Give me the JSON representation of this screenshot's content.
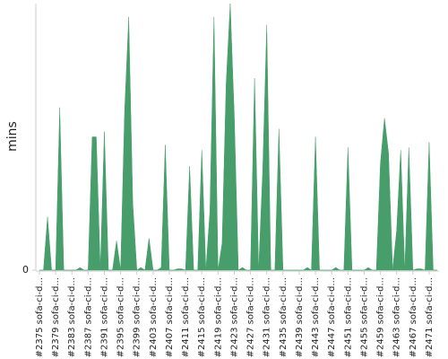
{
  "chart_data": {
    "type": "area",
    "y_label": "mins",
    "color": "#489e6b",
    "ylim": [
      0,
      100
    ],
    "yticks": [
      0
    ],
    "categories": [
      "#2375 sofa-ci-d...",
      null,
      null,
      null,
      "#2379 sofa-ci-d...",
      null,
      null,
      null,
      "#2383 sofa-ci-d...",
      null,
      null,
      null,
      "#2387 sofa-ci-d...",
      null,
      null,
      null,
      "#2391 sofa-ci-d...",
      null,
      null,
      null,
      "#2395 sofa-ci-d...",
      null,
      null,
      null,
      "#2399 sofa-ci-d...",
      null,
      null,
      null,
      "#2403 sofa-ci-d...",
      null,
      null,
      null,
      "#2407 sofa-ci-d...",
      null,
      null,
      null,
      "#2411 sofa-ci-d...",
      null,
      null,
      null,
      "#2415 sofa-ci-d...",
      null,
      null,
      null,
      "#2419 sofa-ci-d...",
      null,
      null,
      null,
      "#2423 sofa-ci-d...",
      null,
      null,
      null,
      "#2427 sofa-ci-d...",
      null,
      null,
      null,
      "#2431 sofa-ci-d...",
      null,
      null,
      null,
      "#2435 sofa-ci-d...",
      null,
      null,
      null,
      "#2439 sofa-ci-d...",
      null,
      null,
      null,
      "#2443 sofa-ci-d...",
      null,
      null,
      null,
      "#2447 sofa-ci-d...",
      null,
      null,
      null,
      "#2451 sofa-ci-d...",
      null,
      null,
      null,
      "#2455 sofa-ci-d...",
      null,
      null,
      null,
      "#2459 sofa-ci-d...",
      null,
      null,
      null,
      "#2463 sofa-ci-d...",
      null,
      null,
      null,
      "#2467 sofa-ci-d...",
      null,
      null,
      null,
      "#2471 sofa-ci-d...",
      null,
      null
    ],
    "values": [
      0,
      0,
      20,
      0,
      0,
      61,
      0,
      0,
      0,
      0,
      1,
      0,
      0,
      50,
      50,
      0,
      52,
      0,
      0,
      11,
      0,
      60,
      95,
      25,
      0,
      1,
      0,
      12,
      0,
      0,
      1,
      47,
      0,
      0,
      0.5,
      0.5,
      0,
      39,
      0,
      0,
      45,
      0,
      22,
      95,
      0,
      10,
      70,
      100,
      58,
      0,
      1,
      0,
      0,
      72,
      0,
      37,
      92,
      0,
      0,
      53,
      0,
      0,
      0,
      0,
      0,
      0,
      1,
      0,
      50,
      0,
      0,
      0,
      0,
      1,
      0,
      0,
      46,
      0,
      0,
      0,
      0,
      1,
      0,
      0,
      40,
      57,
      44,
      0,
      15,
      45,
      0,
      46,
      0,
      0.5,
      0.5,
      0,
      48,
      0,
      0
    ]
  }
}
